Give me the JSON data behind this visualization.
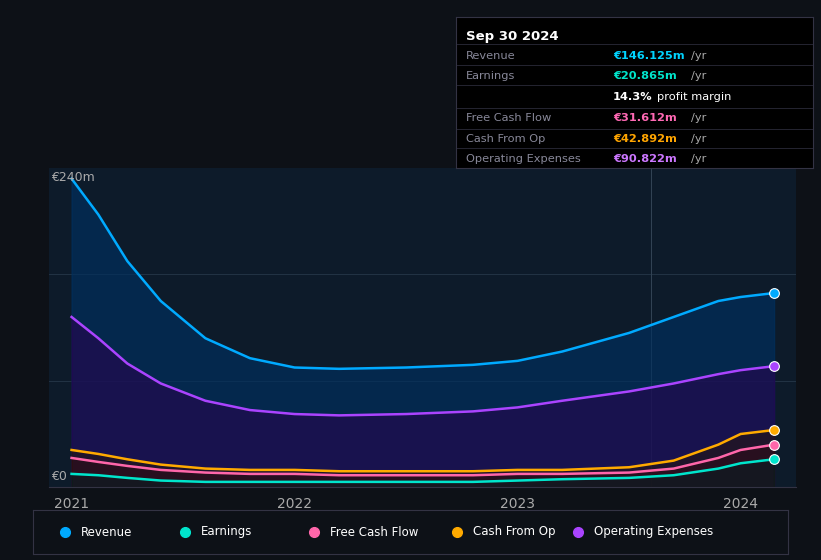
{
  "bg_color": "#0d1117",
  "chart_bg": "#0d1b2a",
  "title_box": {
    "title": "Sep 30 2024",
    "rows": [
      {
        "label": "Revenue",
        "value": "€146.125m /yr",
        "value_color": "#00d4ff"
      },
      {
        "label": "Earnings",
        "value": "€20.865m /yr",
        "value_color": "#00e5cc"
      },
      {
        "label": "",
        "value": "14.3% profit margin",
        "value_color": "#ffffff"
      },
      {
        "label": "Free Cash Flow",
        "value": "€31.612m /yr",
        "value_color": "#ff69b4"
      },
      {
        "label": "Cash From Op",
        "value": "€42.892m /yr",
        "value_color": "#ffa500"
      },
      {
        "label": "Operating Expenses",
        "value": "€90.822m /yr",
        "value_color": "#cc77ff"
      }
    ]
  },
  "ylabel_top": "€240m",
  "ylabel_bottom": "€0",
  "x_ticks": [
    "2021",
    "2022",
    "2023",
    "2024"
  ],
  "x_tick_positions": [
    0.0,
    1.0,
    2.0,
    3.0
  ],
  "ylim": [
    0,
    240
  ],
  "series": {
    "Revenue": {
      "color": "#00aaff",
      "fill_color": "#003060",
      "fill_alpha": 0.65,
      "x": [
        0.0,
        0.12,
        0.25,
        0.4,
        0.6,
        0.8,
        1.0,
        1.2,
        1.5,
        1.8,
        2.0,
        2.2,
        2.5,
        2.7,
        2.9,
        3.0,
        3.15
      ],
      "y": [
        232,
        205,
        170,
        140,
        112,
        97,
        90,
        89,
        90,
        92,
        95,
        102,
        116,
        128,
        140,
        143,
        146
      ]
    },
    "Operating Expenses": {
      "color": "#aa44ff",
      "fill_color": "#2a0050",
      "fill_alpha": 0.55,
      "x": [
        0.0,
        0.12,
        0.25,
        0.4,
        0.6,
        0.8,
        1.0,
        1.2,
        1.5,
        1.8,
        2.0,
        2.2,
        2.5,
        2.7,
        2.9,
        3.0,
        3.15
      ],
      "y": [
        128,
        112,
        93,
        78,
        65,
        58,
        55,
        54,
        55,
        57,
        60,
        65,
        72,
        78,
        85,
        88,
        91
      ]
    },
    "Free Cash Flow": {
      "color": "#ff66aa",
      "fill_color": "#3a0020",
      "fill_alpha": 0.45,
      "x": [
        0.0,
        0.12,
        0.25,
        0.4,
        0.6,
        0.8,
        1.0,
        1.2,
        1.5,
        1.8,
        2.0,
        2.2,
        2.5,
        2.7,
        2.9,
        3.0,
        3.15
      ],
      "y": [
        22,
        19,
        16,
        13,
        11,
        10,
        10,
        9,
        9,
        9,
        10,
        10,
        11,
        14,
        22,
        28,
        32
      ]
    },
    "Cash From Op": {
      "color": "#ffaa00",
      "fill_color": "#2a1800",
      "fill_alpha": 0.45,
      "x": [
        0.0,
        0.12,
        0.25,
        0.4,
        0.6,
        0.8,
        1.0,
        1.2,
        1.5,
        1.8,
        2.0,
        2.2,
        2.5,
        2.7,
        2.9,
        3.0,
        3.15
      ],
      "y": [
        28,
        25,
        21,
        17,
        14,
        13,
        13,
        12,
        12,
        12,
        13,
        13,
        15,
        20,
        32,
        40,
        43
      ]
    },
    "Earnings": {
      "color": "#00e5cc",
      "fill_color": "#002222",
      "fill_alpha": 0.45,
      "x": [
        0.0,
        0.12,
        0.25,
        0.4,
        0.6,
        0.8,
        1.0,
        1.2,
        1.5,
        1.8,
        2.0,
        2.2,
        2.5,
        2.7,
        2.9,
        3.0,
        3.15
      ],
      "y": [
        10,
        9,
        7,
        5,
        4,
        4,
        4,
        4,
        4,
        4,
        5,
        6,
        7,
        9,
        14,
        18,
        21
      ]
    }
  },
  "legend": [
    {
      "label": "Revenue",
      "color": "#00aaff"
    },
    {
      "label": "Earnings",
      "color": "#00e5cc"
    },
    {
      "label": "Free Cash Flow",
      "color": "#ff66aa"
    },
    {
      "label": "Cash From Op",
      "color": "#ffaa00"
    },
    {
      "label": "Operating Expenses",
      "color": "#aa44ff"
    }
  ],
  "divider_y_fracs": [
    0.82,
    0.68,
    0.55,
    0.4,
    0.26,
    0.13
  ],
  "row_y_fracs": [
    0.74,
    0.61,
    0.47,
    0.33,
    0.19,
    0.06
  ]
}
